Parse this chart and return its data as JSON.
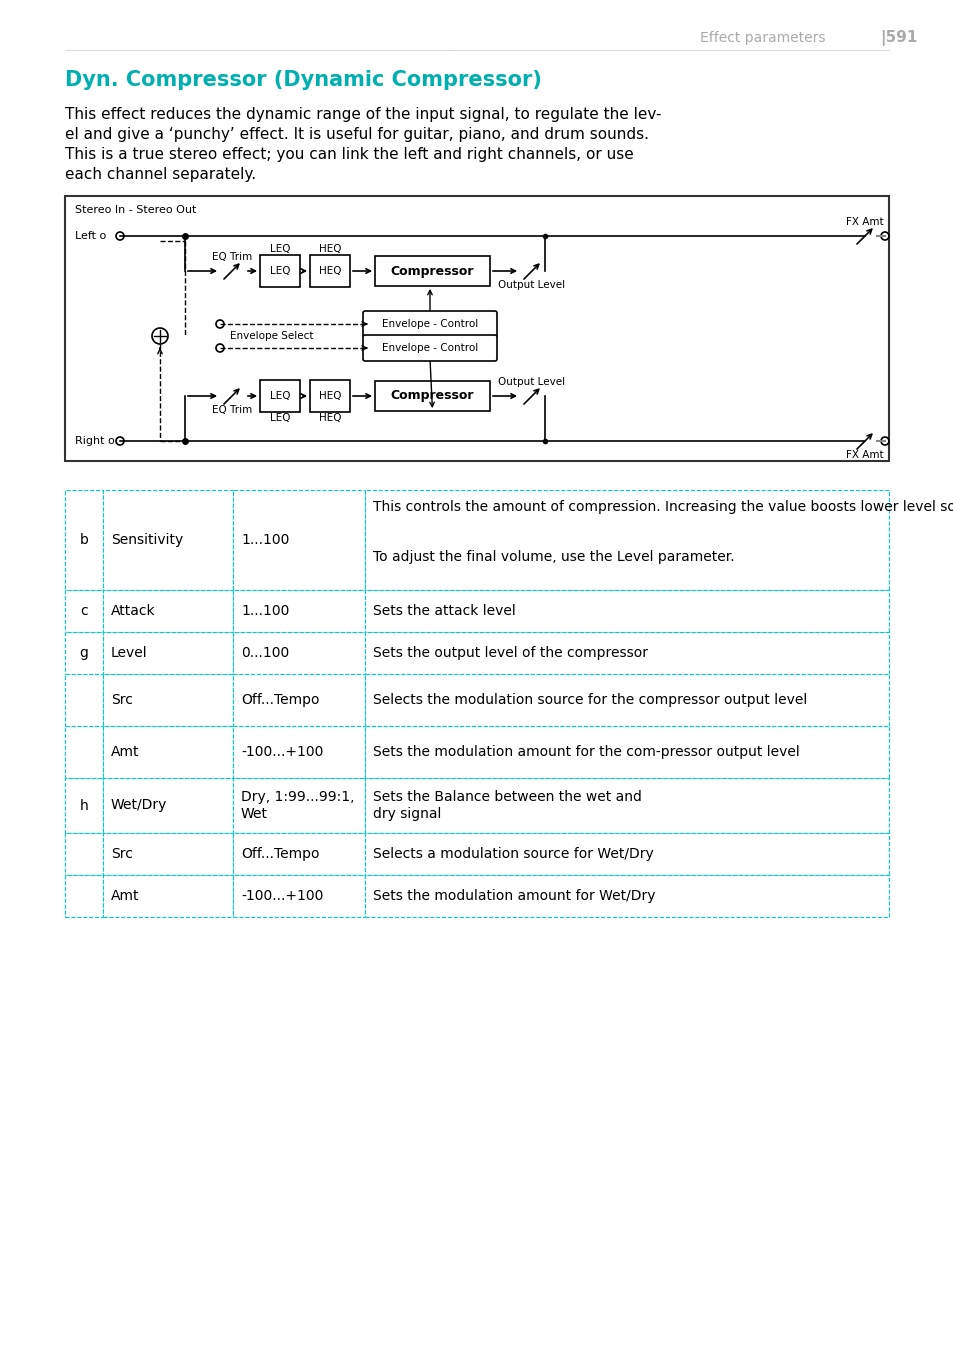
{
  "page_header_text": "Effect parameters",
  "page_number": "|591",
  "title": "Dyn. Compressor (Dynamic Compressor)",
  "body_lines": [
    "This effect reduces the dynamic range of the input signal, to regulate the lev-",
    "el and give a ‘punchy’ effect. It is useful for guitar, piano, and drum sounds.",
    "This is a true stereo effect; you can link the left and right channels, or use",
    "each channel separately."
  ],
  "table_rows": [
    {
      "col0": "b",
      "col1": "Sensitivity",
      "col2": "1...100",
      "col3a": "This controls the amount of compression. Increasing the value boosts lower level sounds, and raises the overall volume.",
      "col3b": "To adjust the final volume, use the Level parameter."
    },
    {
      "col0": "c",
      "col1": "Attack",
      "col2": "1...100",
      "col3a": "Sets the attack level",
      "col3b": ""
    },
    {
      "col0": "g",
      "col1": "Level",
      "col2": "0...100",
      "col3a": "Sets the output level of the compressor",
      "col3b": ""
    },
    {
      "col0": "",
      "col1": "Src",
      "col2": "Off...Tempo",
      "col3a": "Selects the modulation source for the compressor output level",
      "col3b": ""
    },
    {
      "col0": "",
      "col1": "Amt",
      "col2": "-100...+100",
      "col3a": "Sets the modulation amount for the com-pressor output level",
      "col3b": ""
    },
    {
      "col0": "h",
      "col1": "Wet/Dry",
      "col2": "Dry, 1:99...99:1, Wet",
      "col3a": "Sets the Balance between the wet and dry signal",
      "col3b": ""
    },
    {
      "col0": "",
      "col1": "Src",
      "col2": "Off...Tempo",
      "col3a": "Selects a modulation source for Wet/Dry",
      "col3b": ""
    },
    {
      "col0": "",
      "col1": "Amt",
      "col2": "-100...+100",
      "col3a": "Sets the modulation amount for Wet/Dry",
      "col3b": ""
    }
  ],
  "header_color": "#aaaaaa",
  "title_color": "#00b0b0",
  "table_border_color": "#00cccc",
  "bg_color": "#ffffff",
  "text_color": "#000000"
}
